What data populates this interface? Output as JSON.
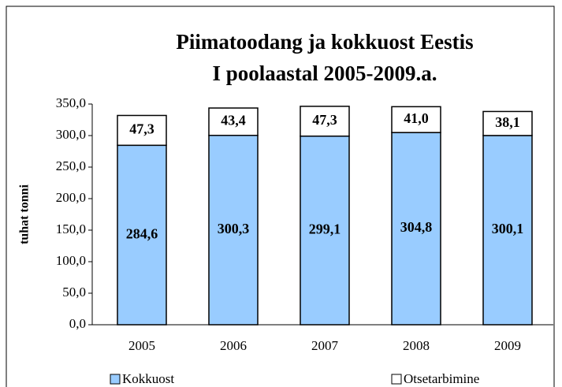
{
  "chart_data": {
    "type": "stacked_bar",
    "title": [
      "Piimatoodang ja kokkuost Eestis",
      "I poolaastal 2005-2009.a."
    ],
    "y_label": "tuhat tonni",
    "categories": [
      "2005",
      "2006",
      "2007",
      "2008",
      "2009"
    ],
    "series": [
      {
        "name": "Kokkuost",
        "color": "#99ccff",
        "values": [
          284.6,
          300.3,
          299.1,
          304.8,
          300.1
        ],
        "value_labels": [
          "284,6",
          "300,3",
          "299,1",
          "304,8",
          "300,1"
        ]
      },
      {
        "name": "Otsetarbimine",
        "color": "#ffffff",
        "values": [
          47.3,
          43.4,
          47.3,
          41.0,
          38.1
        ],
        "value_labels": [
          "47,3",
          "43,4",
          "47,3",
          "41,0",
          "38,1"
        ]
      }
    ],
    "ylim": [
      0,
      350
    ],
    "yticks": [
      {
        "value": 0,
        "label": "0,0"
      },
      {
        "value": 50,
        "label": "50,0"
      },
      {
        "value": 100,
        "label": "100,0"
      },
      {
        "value": 150,
        "label": "150,0"
      },
      {
        "value": 200,
        "label": "200,0"
      },
      {
        "value": 250,
        "label": "250,0"
      },
      {
        "value": 300,
        "label": "300,0"
      },
      {
        "value": 350,
        "label": "350,0"
      }
    ],
    "grid": false,
    "legend": "bottom"
  }
}
